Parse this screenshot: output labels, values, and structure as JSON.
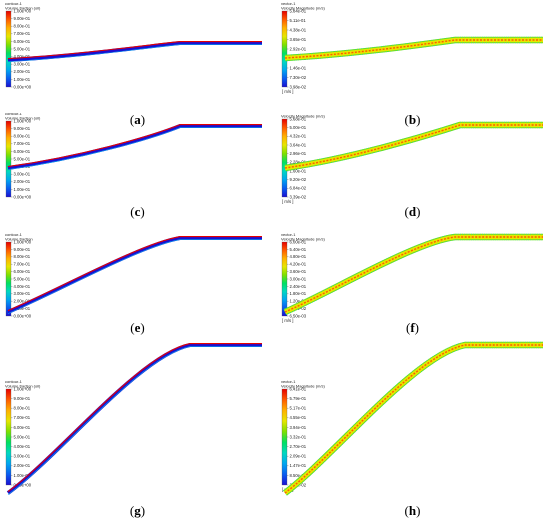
{
  "colormap": [
    "#1a0fd1",
    "#0a5cf0",
    "#00a6f0",
    "#00d8c0",
    "#00e060",
    "#7ee000",
    "#e6e600",
    "#ffb000",
    "#ff5a00",
    "#e60000"
  ],
  "panels": [
    {
      "id": "a",
      "label": "a",
      "cb_title_lines": [
        "contour-1",
        "Volume fraction (oil)"
      ],
      "ticks": [
        "1.00e+00",
        "9.00e-01",
        "8.00e-01",
        "7.00e-01",
        "6.00e-01",
        "5.00e-01",
        "4.00e-01",
        "3.00e-01",
        "2.00e-01",
        "1.00e-01",
        "0.00e+00"
      ],
      "unit": "",
      "kind": "fraction"
    },
    {
      "id": "b",
      "label": "b",
      "cb_title_lines": [
        "vector-1",
        "Velocity Magnitude (m/s)"
      ],
      "ticks": [
        "5.84e-01",
        "5.11e-01",
        "4.38e-01",
        "3.65e-01",
        "2.92e-01",
        "2.19e-01",
        "1.46e-01",
        "7.30e-02",
        "3.98e-02"
      ],
      "unit": "[ m/s ]",
      "kind": "velocity"
    },
    {
      "id": "c",
      "label": "c",
      "cb_title_lines": [
        "contour-1",
        "Volume fraction (oil)"
      ],
      "ticks": [
        "1.00e+00",
        "9.00e-01",
        "8.00e-01",
        "7.00e-01",
        "6.00e-01",
        "5.00e-01",
        "4.00e-01",
        "3.00e-01",
        "2.00e-01",
        "1.00e-01",
        "0.00e+00"
      ],
      "unit": "",
      "kind": "fraction"
    },
    {
      "id": "d",
      "label": "d",
      "cb_title_lines": [
        "vector-1",
        "Velocity Magnitude (m/s)"
      ],
      "ticks": [
        "5.68e-01",
        "5.00e-01",
        "4.32e-01",
        "3.64e-01",
        "2.96e-01",
        "2.28e-01",
        "1.60e-01",
        "9.20e-02",
        "6.84e-02",
        "3.39e-02"
      ],
      "unit": "[ m/s ]",
      "kind": "velocity"
    },
    {
      "id": "e",
      "label": "e",
      "cb_title_lines": [
        "contour-1",
        "Volume fraction"
      ],
      "ticks": [
        "1.00e+00",
        "9.00e-01",
        "8.00e-01",
        "7.00e-01",
        "6.00e-01",
        "5.00e-01",
        "4.00e-01",
        "3.00e-01",
        "2.00e-01",
        "1.00e-01",
        "0.00e+00"
      ],
      "unit": "",
      "kind": "fraction"
    },
    {
      "id": "f",
      "label": "f",
      "cb_title_lines": [
        "vector-1",
        "Velocity Magnitude (m/s)"
      ],
      "ticks": [
        "6.00e-01",
        "5.40e-01",
        "4.80e-01",
        "4.20e-01",
        "3.60e-01",
        "3.00e-01",
        "2.40e-01",
        "1.80e-01",
        "1.20e-01",
        "6.00e-02",
        "6.50e-03"
      ],
      "unit": "[ m/s ]",
      "kind": "velocity"
    },
    {
      "id": "g",
      "label": "g",
      "cb_title_lines": [
        "contour-1",
        "Volume fraction (oil)"
      ],
      "ticks": [
        "1.00e+00",
        "9.00e-01",
        "8.00e-01",
        "7.00e-01",
        "6.00e-01",
        "5.00e-01",
        "4.00e-01",
        "3.00e-01",
        "2.00e-01",
        "1.00e-01",
        "0.00e+00"
      ],
      "unit": "",
      "kind": "fraction"
    },
    {
      "id": "h",
      "label": "h",
      "cb_title_lines": [
        "vector-1",
        "Velocity Magnitude (m/s)"
      ],
      "ticks": [
        "6.41e-01",
        "5.79e-01",
        "5.17e-01",
        "4.55e-01",
        "3.94e-01",
        "3.32e-01",
        "2.70e-01",
        "2.09e-01",
        "1.47e-01",
        "8.50e-02",
        "2.35e-02"
      ],
      "unit": "[ m/s ]",
      "kind": "velocity"
    }
  ]
}
